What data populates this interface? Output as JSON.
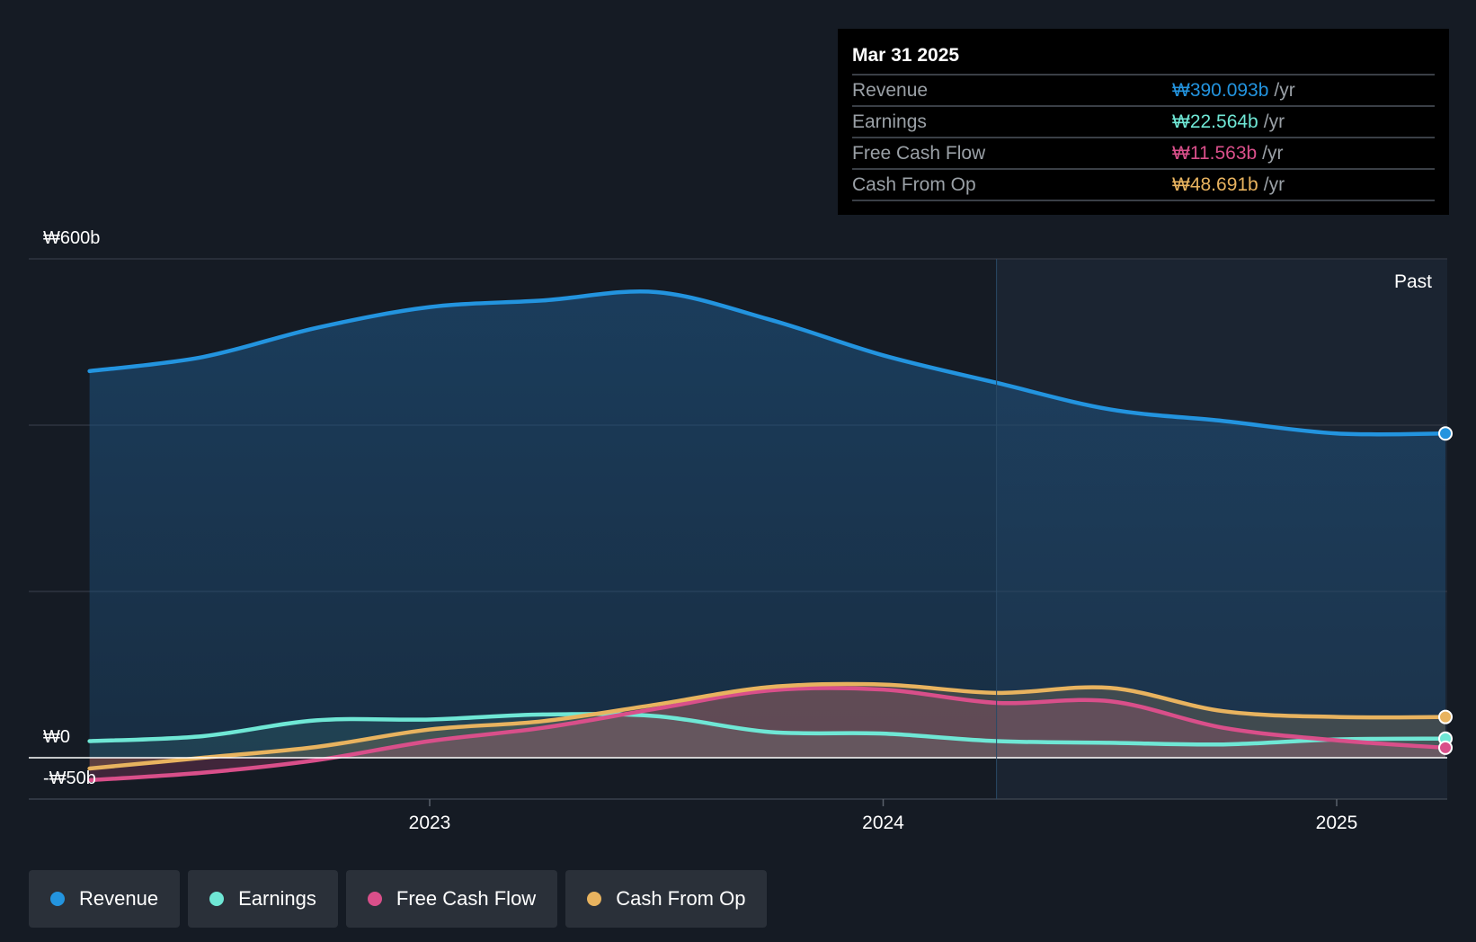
{
  "tooltip": {
    "date": "Mar 31 2025",
    "rows": [
      {
        "label": "Revenue",
        "value": "₩390.093b",
        "unit": "/yr",
        "color": "#2394df"
      },
      {
        "label": "Earnings",
        "value": "₩22.564b",
        "unit": "/yr",
        "color": "#6fe7d5"
      },
      {
        "label": "Free Cash Flow",
        "value": "₩11.563b",
        "unit": "/yr",
        "color": "#d94f8a"
      },
      {
        "label": "Cash From Op",
        "value": "₩48.691b",
        "unit": "/yr",
        "color": "#e8b35f"
      }
    ]
  },
  "past_label": "Past",
  "legend": [
    {
      "label": "Revenue",
      "color": "#2394df"
    },
    {
      "label": "Earnings",
      "color": "#6fe7d5"
    },
    {
      "label": "Free Cash Flow",
      "color": "#d94f8a"
    },
    {
      "label": "Cash From Op",
      "color": "#e8b35f"
    }
  ],
  "chart_data": {
    "type": "area",
    "y_tick_labels": [
      "₩600b",
      "₩0",
      "-₩50b"
    ],
    "ylim": [
      -50,
      600
    ],
    "x_tick_labels": [
      "2023",
      "2024",
      "2025"
    ],
    "x_ticks": [
      2023.0,
      2024.0,
      2025.0
    ],
    "xlim": [
      2022.3,
      2025.25
    ],
    "grid": true,
    "legend_position": "bottom",
    "series": [
      {
        "name": "Revenue",
        "color": "#2394df",
        "x": [
          2022.25,
          2022.5,
          2022.75,
          2023.0,
          2023.25,
          2023.5,
          2023.75,
          2024.0,
          2024.25,
          2024.5,
          2024.75,
          2025.0,
          2025.25
        ],
        "values": [
          465,
          482,
          517,
          542,
          550,
          560,
          527,
          484,
          451,
          419,
          405,
          390,
          390
        ]
      },
      {
        "name": "Earnings",
        "color": "#6fe7d5",
        "x": [
          2022.25,
          2022.5,
          2022.75,
          2023.0,
          2023.25,
          2023.5,
          2023.75,
          2024.0,
          2024.25,
          2024.5,
          2024.75,
          2025.0,
          2025.25
        ],
        "values": [
          20,
          26,
          45,
          46,
          52,
          50,
          31,
          29,
          20,
          18,
          16,
          22,
          23
        ]
      },
      {
        "name": "Free Cash Flow",
        "color": "#d94f8a",
        "x": [
          2022.25,
          2022.5,
          2022.75,
          2023.0,
          2023.25,
          2023.5,
          2023.75,
          2024.0,
          2024.25,
          2024.5,
          2024.75,
          2025.0,
          2025.25
        ],
        "values": [
          -27,
          -18,
          -3,
          20,
          36,
          59,
          81,
          82,
          66,
          68,
          36,
          21,
          12
        ]
      },
      {
        "name": "Cash From Op",
        "color": "#e8b35f",
        "x": [
          2022.25,
          2022.5,
          2022.75,
          2023.0,
          2023.25,
          2023.5,
          2023.75,
          2024.0,
          2024.25,
          2024.5,
          2024.75,
          2025.0,
          2025.25
        ],
        "values": [
          -13,
          0,
          13,
          34,
          44,
          64,
          85,
          88,
          78,
          84,
          56,
          49,
          49
        ]
      }
    ]
  }
}
